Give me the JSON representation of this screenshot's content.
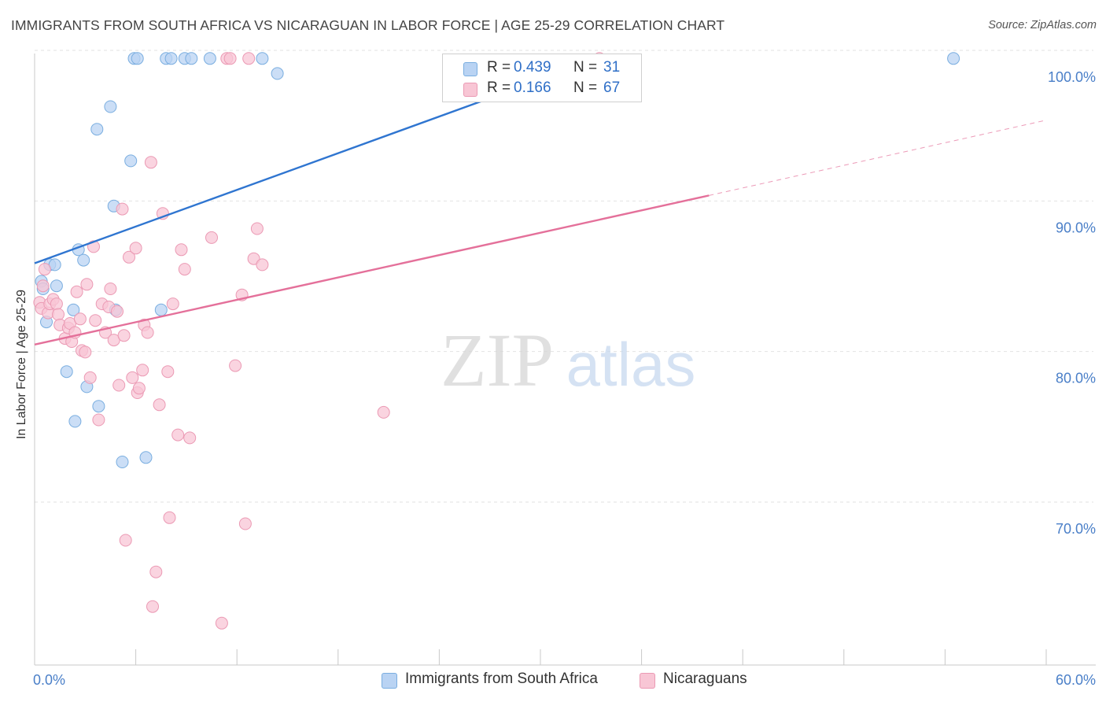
{
  "title": "IMMIGRANTS FROM SOUTH AFRICA VS NICARAGUAN IN LABOR FORCE | AGE 25-29 CORRELATION CHART",
  "source": "Source: ZipAtlas.com",
  "watermark": {
    "zip": "ZIP",
    "atlas": "atlas"
  },
  "colors": {
    "blue_fill": "#b9d3f3",
    "blue_stroke": "#7aaee0",
    "blue_line": "#2f75d0",
    "pink_fill": "#f8c6d5",
    "pink_stroke": "#eb9ab4",
    "pink_line": "#e4709a",
    "axis_label": "#4a7fc8",
    "grid": "#e2e2e2"
  },
  "legend": {
    "r_label": "R =",
    "n_label": "N =",
    "series": [
      {
        "name": "Immigrants from South Africa",
        "r": "0.439",
        "n": "31"
      },
      {
        "name": "Nicaraguans",
        "r": "0.166",
        "n": "67"
      }
    ]
  },
  "chart_data": {
    "type": "scatter",
    "title": "IMMIGRANTS FROM SOUTH AFRICA VS NICARAGUAN IN LABOR FORCE | AGE 25-29 CORRELATION CHART",
    "xlabel": "",
    "ylabel": "In Labor Force | Age 25-29",
    "xlim": [
      0,
      60
    ],
    "ylim": [
      60,
      102
    ],
    "x_tick_labels": [
      {
        "value": 0,
        "label": "0.0%"
      },
      {
        "value": 60,
        "label": "60.0%"
      }
    ],
    "y_tick_labels": [
      {
        "value": 70,
        "label": "70.0%"
      },
      {
        "value": 80,
        "label": "80.0%"
      },
      {
        "value": 90,
        "label": "90.0%"
      },
      {
        "value": 100,
        "label": "100.0%"
      }
    ],
    "series": [
      {
        "name": "Immigrants from South Africa",
        "r": 0.439,
        "n": 31,
        "trend": {
          "x": [
            0,
            33.5
          ],
          "y": [
            86.7,
            100.3
          ],
          "dashed_extension": false
        },
        "points": [
          [
            0.4,
            85.5
          ],
          [
            0.5,
            85.0
          ],
          [
            0.7,
            82.8
          ],
          [
            0.9,
            86.6
          ],
          [
            1.2,
            86.6
          ],
          [
            1.3,
            85.2
          ],
          [
            1.9,
            79.5
          ],
          [
            2.3,
            83.6
          ],
          [
            2.4,
            76.2
          ],
          [
            2.6,
            87.6
          ],
          [
            2.9,
            86.9
          ],
          [
            3.1,
            78.5
          ],
          [
            3.7,
            95.6
          ],
          [
            3.8,
            77.2
          ],
          [
            4.5,
            97.1
          ],
          [
            4.7,
            90.5
          ],
          [
            4.8,
            83.6
          ],
          [
            5.2,
            73.5
          ],
          [
            5.7,
            93.5
          ],
          [
            5.9,
            100.3
          ],
          [
            6.1,
            100.3
          ],
          [
            6.6,
            73.8
          ],
          [
            7.5,
            83.6
          ],
          [
            7.8,
            100.3
          ],
          [
            8.1,
            100.3
          ],
          [
            8.9,
            100.3
          ],
          [
            9.3,
            100.3
          ],
          [
            10.4,
            100.3
          ],
          [
            13.5,
            100.3
          ],
          [
            14.4,
            99.3
          ],
          [
            54.5,
            100.3
          ]
        ]
      },
      {
        "name": "Nicaraguans",
        "r": 0.166,
        "n": 67,
        "trend": {
          "x": [
            0,
            40.0
          ],
          "y": [
            81.3,
            91.2
          ],
          "dashed_extension": {
            "x": [
              40.0,
              60.0
            ],
            "y": [
              91.2,
              96.2
            ]
          }
        },
        "points": [
          [
            0.3,
            84.1
          ],
          [
            0.4,
            83.7
          ],
          [
            0.5,
            85.2
          ],
          [
            0.6,
            86.3
          ],
          [
            0.8,
            83.4
          ],
          [
            0.9,
            84.0
          ],
          [
            1.1,
            84.3
          ],
          [
            1.3,
            84.0
          ],
          [
            1.4,
            83.3
          ],
          [
            1.5,
            82.6
          ],
          [
            1.8,
            81.7
          ],
          [
            2.0,
            82.4
          ],
          [
            2.1,
            82.7
          ],
          [
            2.2,
            81.5
          ],
          [
            2.4,
            82.1
          ],
          [
            2.5,
            84.8
          ],
          [
            2.7,
            83.0
          ],
          [
            2.8,
            80.9
          ],
          [
            3.0,
            80.8
          ],
          [
            3.1,
            85.3
          ],
          [
            3.3,
            79.1
          ],
          [
            3.5,
            87.8
          ],
          [
            3.6,
            82.9
          ],
          [
            3.8,
            76.3
          ],
          [
            4.0,
            84.0
          ],
          [
            4.2,
            82.1
          ],
          [
            4.4,
            83.8
          ],
          [
            4.5,
            85.0
          ],
          [
            4.7,
            81.6
          ],
          [
            4.9,
            83.5
          ],
          [
            5.0,
            78.6
          ],
          [
            5.2,
            90.3
          ],
          [
            5.3,
            81.9
          ],
          [
            5.4,
            68.3
          ],
          [
            5.6,
            87.1
          ],
          [
            5.8,
            79.1
          ],
          [
            6.0,
            87.7
          ],
          [
            6.1,
            78.1
          ],
          [
            6.2,
            78.4
          ],
          [
            6.4,
            79.6
          ],
          [
            6.5,
            82.6
          ],
          [
            6.7,
            82.1
          ],
          [
            6.9,
            93.4
          ],
          [
            7.0,
            63.9
          ],
          [
            7.2,
            66.2
          ],
          [
            7.4,
            77.3
          ],
          [
            7.6,
            90.0
          ],
          [
            7.9,
            79.5
          ],
          [
            8.0,
            69.8
          ],
          [
            8.2,
            84.0
          ],
          [
            8.5,
            75.3
          ],
          [
            8.7,
            87.6
          ],
          [
            8.9,
            86.3
          ],
          [
            9.2,
            75.1
          ],
          [
            10.5,
            88.4
          ],
          [
            11.1,
            62.8
          ],
          [
            11.4,
            100.3
          ],
          [
            11.6,
            100.3
          ],
          [
            11.9,
            79.9
          ],
          [
            12.3,
            84.6
          ],
          [
            12.5,
            69.4
          ],
          [
            12.7,
            100.3
          ],
          [
            13.0,
            87.0
          ],
          [
            13.2,
            89.0
          ],
          [
            13.5,
            86.6
          ],
          [
            20.7,
            76.8
          ],
          [
            33.5,
            100.3
          ]
        ]
      }
    ]
  }
}
